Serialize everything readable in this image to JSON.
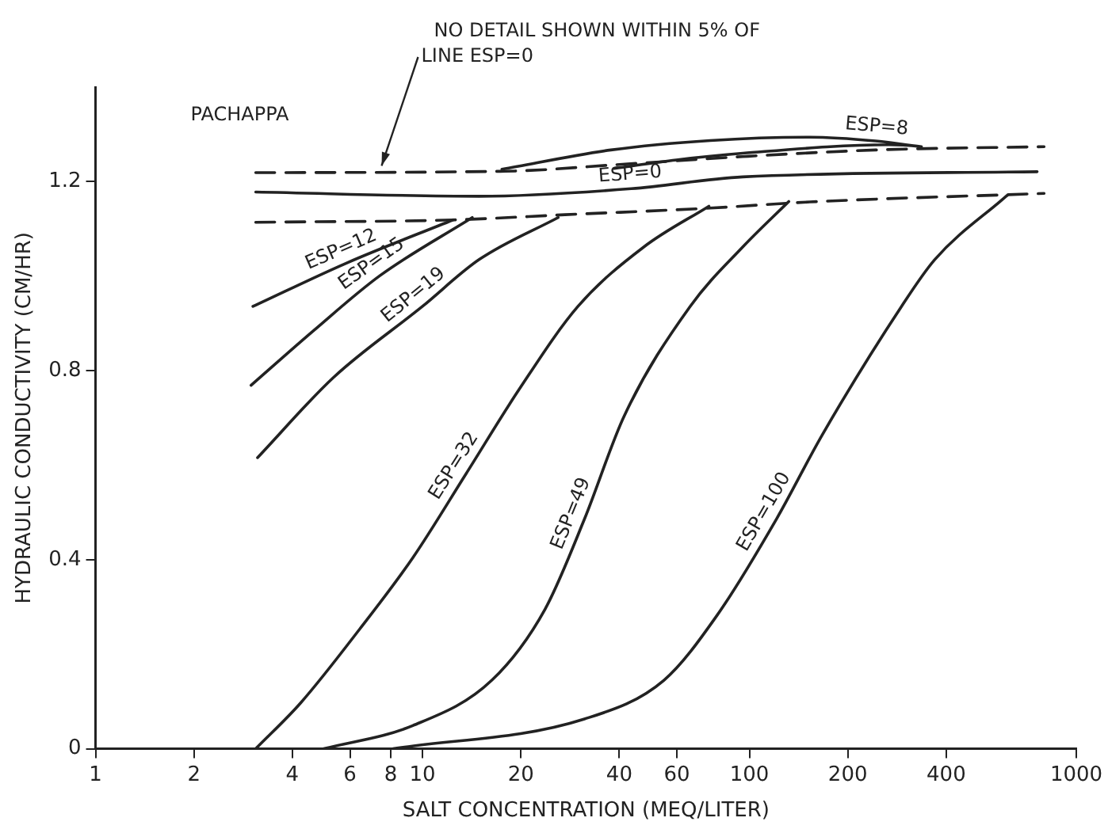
{
  "chart_data": {
    "type": "line",
    "xlabel": "SALT CONCENTRATION (MEQ/LITER)",
    "ylabel": "HYDRAULIC CONDUCTIVITY (CM/HR)",
    "log": "x",
    "xlim": [
      1,
      1000
    ],
    "xticks": [
      1,
      2,
      4,
      6,
      8,
      10,
      20,
      40,
      60,
      100,
      200,
      400,
      1000
    ],
    "ylim": [
      0,
      1.4
    ],
    "yticks": [
      0,
      0.4,
      0.8,
      1.2
    ],
    "grid": false,
    "legend": false,
    "marker": "none",
    "line_style": "solid",
    "annotations": [
      "PACHAPPA",
      {
        "text": "NO DETAIL SHOWN WITHIN 5% OF LINE ESP=0",
        "x": 7.5,
        "y": 1.22
      }
    ],
    "series": [
      {
        "name": "ESP=0",
        "color": "#222222",
        "x": [
          3.09,
          14.9,
          43.5,
          95.5,
          759
        ],
        "values": [
          1.178,
          1.169,
          1.185,
          1.21,
          1.221
        ]
      },
      {
        "color": "#222222",
        "line_style": "dashed",
        "x": [
          3.09,
          17.9,
          41.6,
          95.5,
          243,
          797
        ],
        "values": [
          1.219,
          1.222,
          1.237,
          1.253,
          1.267,
          1.274
        ]
      },
      {
        "color": "#222222",
        "line_style": "dashed",
        "x": [
          3.09,
          12.4,
          27.3,
          75.9,
          153,
          797
        ],
        "values": [
          1.114,
          1.119,
          1.13,
          1.144,
          1.157,
          1.175
        ]
      },
      {
        "name": "ESP=8",
        "color": "#222222",
        "x": [
          38.6,
          59.8,
          95.5,
          267,
          336,
          243,
          153,
          75.9,
          37.7,
          17.5
        ],
        "values": [
          1.228,
          1.246,
          1.26,
          1.278,
          1.274,
          1.286,
          1.294,
          1.287,
          1.267,
          1.226
        ]
      },
      {
        "name": "ESP=12",
        "color": "#222222",
        "x": [
          3.03,
          5.87,
          12.4
        ],
        "values": [
          0.936,
          1.028,
          1.119
        ]
      },
      {
        "name": "ESP=15",
        "color": "#222222",
        "x": [
          2.99,
          4.65,
          7.41,
          14.2
        ],
        "values": [
          0.769,
          0.885,
          1.001,
          1.124
        ]
      },
      {
        "name": "ESP=19",
        "color": "#222222",
        "x": [
          3.13,
          5.35,
          10,
          14.9,
          26
        ],
        "values": [
          0.616,
          0.786,
          0.936,
          1.035,
          1.124
        ]
      },
      {
        "name": "ESP=32",
        "color": "#222222",
        "x": [
          3.09,
          4.24,
          6.44,
          9.34,
          13.6,
          19.7,
          29.9,
          47.6,
          75.2
        ],
        "values": [
          0,
          0.097,
          0.254,
          0.404,
          0.582,
          0.759,
          0.936,
          1.062,
          1.148
        ]
      },
      {
        "name": "ESP=49",
        "color": "#222222",
        "x": [
          4.99,
          9.34,
          16.3,
          23.7,
          31.3,
          41.4,
          65.9,
          95.5,
          132
        ],
        "values": [
          0,
          0.049,
          0.145,
          0.295,
          0.486,
          0.704,
          0.936,
          1.062,
          1.158
        ]
      },
      {
        "name": "ESP=100",
        "color": "#222222",
        "x": [
          8.13,
          31.3,
          54.8,
          79.4,
          121,
          167,
          292,
          369,
          615
        ],
        "values": [
          0,
          0.063,
          0.145,
          0.281,
          0.486,
          0.664,
          0.936,
          1.035,
          1.171
        ]
      }
    ]
  }
}
